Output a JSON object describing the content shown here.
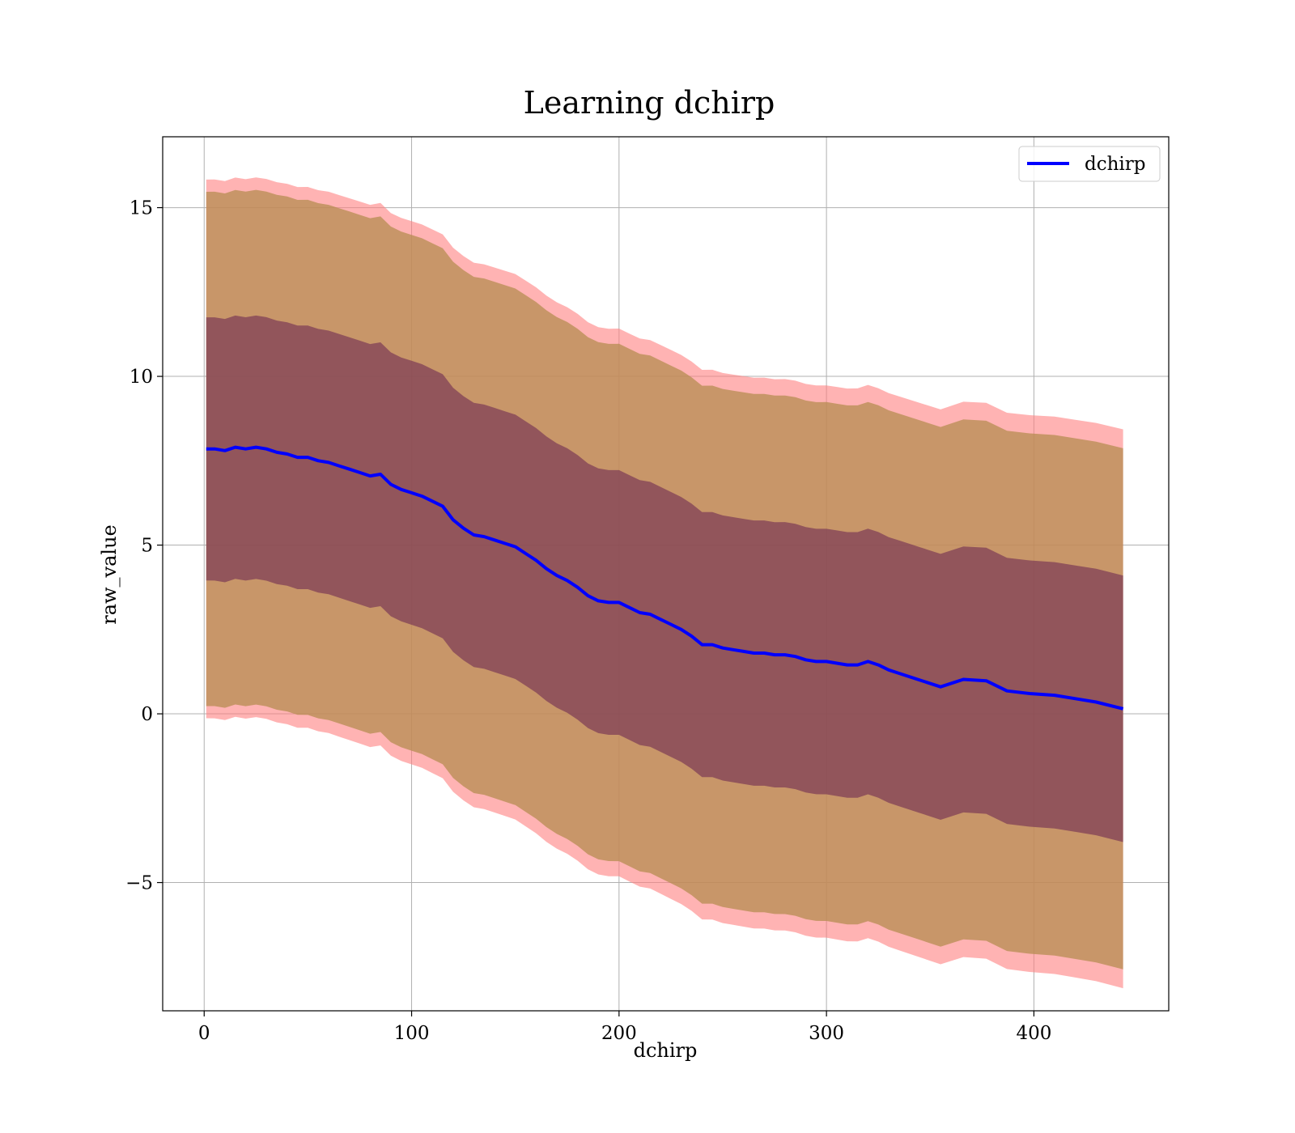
{
  "chart_data": {
    "type": "line",
    "title": "Learning dchirp",
    "xlabel": "dchirp",
    "ylabel": "raw_value",
    "xlim": [
      -20,
      465
    ],
    "ylim": [
      -8.8,
      17.1
    ],
    "xticks": [
      0,
      100,
      200,
      300,
      400
    ],
    "yticks": [
      -5,
      0,
      5,
      10,
      15
    ],
    "xtick_labels": [
      "0",
      "100",
      "200",
      "300",
      "400"
    ],
    "ytick_labels": [
      "−5",
      "0",
      "5",
      "10",
      "15"
    ],
    "grid": true,
    "legend": {
      "position": "top-right",
      "entries": [
        "dchirp"
      ]
    },
    "colors": {
      "line": "#0000ff",
      "band_outer": "#ff8080",
      "band_mid": "#b58c50",
      "band_inner": "#6e2a52",
      "grid": "#b0b0b0"
    },
    "series": [
      {
        "name": "dchirp",
        "x": [
          1,
          5,
          10,
          15,
          20,
          25,
          30,
          35,
          40,
          45,
          50,
          55,
          60,
          65,
          70,
          75,
          80,
          85,
          90,
          95,
          100,
          105,
          110,
          115,
          120,
          125,
          130,
          135,
          140,
          145,
          150,
          155,
          160,
          165,
          170,
          175,
          180,
          185,
          190,
          195,
          200,
          205,
          210,
          215,
          220,
          225,
          230,
          235,
          240,
          245,
          250,
          255,
          260,
          265,
          270,
          275,
          280,
          285,
          290,
          295,
          300,
          305,
          310,
          315,
          320,
          325,
          330,
          335,
          345,
          355,
          366,
          377,
          387,
          398,
          410,
          420,
          430,
          443
        ],
        "values": [
          7.85,
          7.85,
          7.8,
          7.9,
          7.85,
          7.9,
          7.85,
          7.75,
          7.7,
          7.6,
          7.6,
          7.5,
          7.45,
          7.35,
          7.25,
          7.15,
          7.05,
          7.1,
          6.8,
          6.65,
          6.55,
          6.45,
          6.3,
          6.15,
          5.75,
          5.5,
          5.3,
          5.25,
          5.15,
          5.05,
          4.95,
          4.75,
          4.55,
          4.3,
          4.1,
          3.95,
          3.75,
          3.5,
          3.35,
          3.3,
          3.3,
          3.15,
          3.0,
          2.95,
          2.8,
          2.65,
          2.5,
          2.3,
          2.05,
          2.05,
          1.95,
          1.9,
          1.85,
          1.8,
          1.8,
          1.75,
          1.75,
          1.7,
          1.6,
          1.55,
          1.55,
          1.5,
          1.45,
          1.45,
          1.55,
          1.45,
          1.3,
          1.2,
          1.0,
          0.8,
          1.02,
          0.98,
          0.68,
          0.6,
          0.55,
          0.45,
          0.35,
          0.15
        ]
      }
    ],
    "bands": [
      {
        "sigma": 2.0,
        "values": [
          7.8,
          7.8,
          7.8,
          7.85,
          7.85,
          7.9,
          7.9,
          7.8,
          7.75,
          7.7,
          7.65,
          7.55,
          7.5,
          7.4,
          7.3,
          7.2,
          7.1,
          7.05,
          6.85,
          6.7,
          6.55,
          6.45,
          6.3,
          6.15,
          5.8,
          5.5,
          5.3,
          5.25,
          5.15,
          5.05,
          4.95,
          4.75,
          4.55,
          4.3,
          4.1,
          3.95,
          3.75,
          3.5,
          3.35,
          3.3,
          3.3,
          3.15,
          3.0,
          2.95,
          2.8,
          2.65,
          2.5,
          2.3,
          2.05,
          2.05,
          1.95,
          1.9,
          1.85,
          1.8,
          1.8,
          1.75,
          1.75,
          1.7,
          1.6,
          1.55,
          1.55,
          1.5,
          1.45,
          1.45,
          1.55,
          1.45,
          1.3,
          1.2,
          1.0,
          0.8,
          1.02,
          0.98,
          0.68,
          0.6,
          0.55,
          0.45,
          0.35,
          0.15
        ]
      }
    ]
  }
}
